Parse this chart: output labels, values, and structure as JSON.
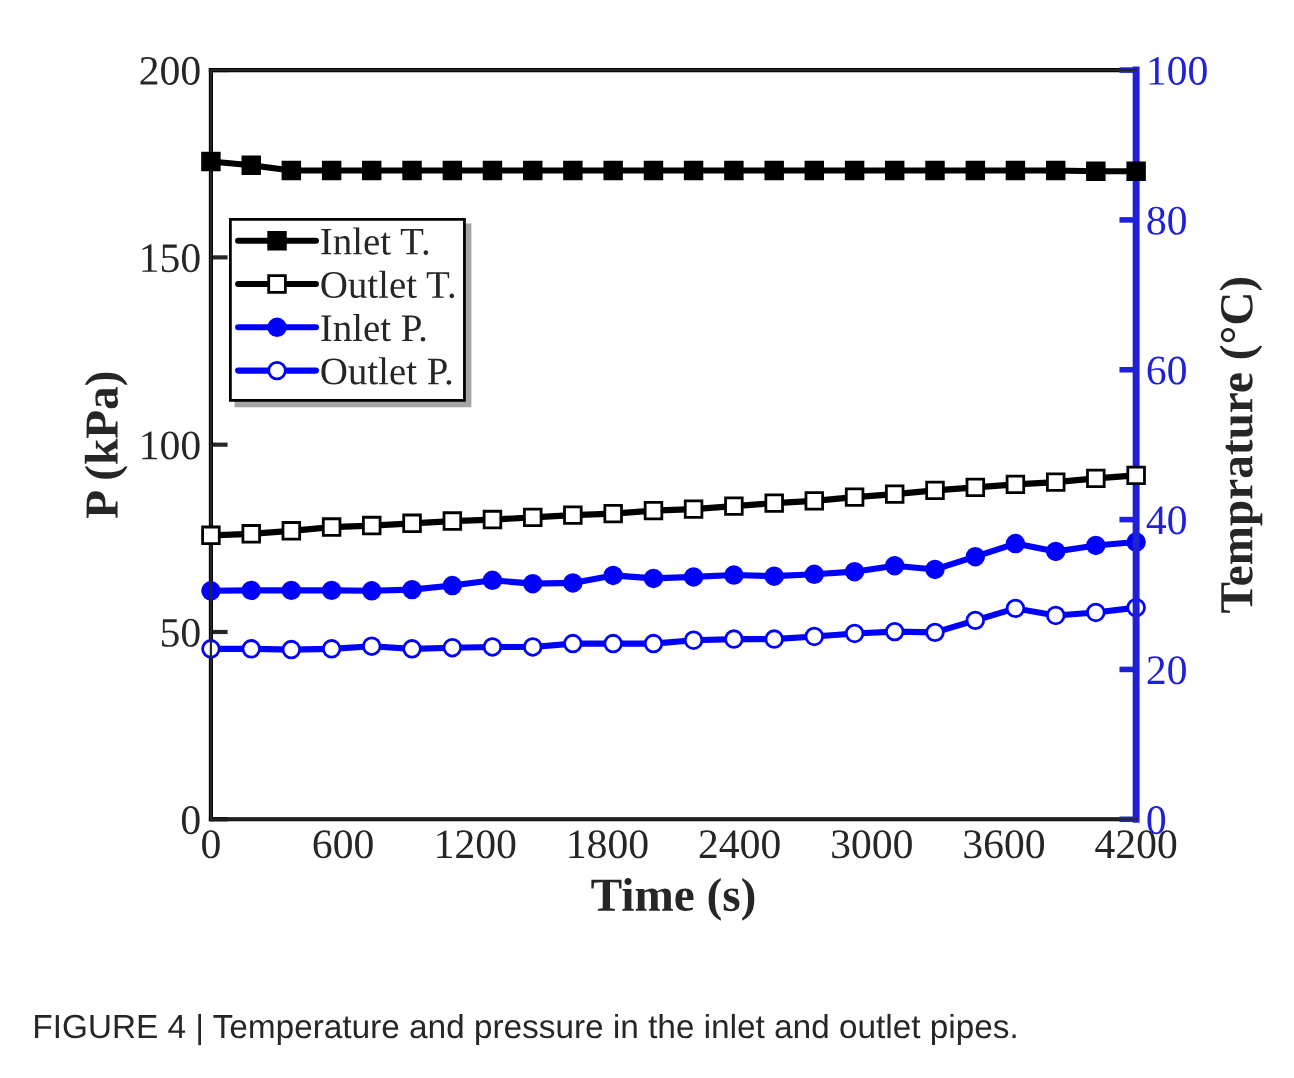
{
  "chart_data": {
    "type": "line",
    "xlabel": "Time (s)",
    "ylabel": "P (kPa)",
    "y2label": "Temprature (°C)",
    "x": [
      0,
      183,
      365,
      548,
      730,
      913,
      1096,
      1278,
      1461,
      1643,
      1826,
      2009,
      2191,
      2374,
      2557,
      2739,
      2922,
      3104,
      3287,
      3470,
      3652,
      3835,
      4017,
      4200
    ],
    "series": [
      {
        "name": "Inlet T.",
        "color": "#000000",
        "axis": "y2",
        "marker": "square",
        "values": [
          87.8,
          87.3,
          86.6,
          86.6,
          86.6,
          86.6,
          86.6,
          86.6,
          86.6,
          86.6,
          86.6,
          86.6,
          86.6,
          86.6,
          86.6,
          86.6,
          86.6,
          86.6,
          86.6,
          86.6,
          86.6,
          86.6,
          86.5,
          86.5
        ]
      },
      {
        "name": "Outlet T.",
        "color": "#000000",
        "axis": "y2",
        "marker": "square",
        "values": [
          37.9,
          38.1,
          38.5,
          39.0,
          39.2,
          39.5,
          39.8,
          40.0,
          40.3,
          40.6,
          40.8,
          41.2,
          41.4,
          41.8,
          42.2,
          42.5,
          43.0,
          43.4,
          43.9,
          44.3,
          44.7,
          45.0,
          45.5,
          45.9
        ]
      },
      {
        "name": "Inlet P.",
        "color": "#0000ff",
        "axis": "y",
        "marker": "circle",
        "values": [
          61.0,
          61.1,
          61.1,
          61.1,
          61.0,
          61.3,
          62.4,
          63.8,
          62.9,
          63.1,
          65.1,
          64.3,
          64.7,
          65.2,
          64.9,
          65.4,
          66.1,
          67.7,
          66.7,
          70.1,
          73.6,
          71.5,
          73.1,
          74.0
        ]
      },
      {
        "name": "Outlet P.",
        "color": "#0000ff",
        "axis": "y",
        "marker": "circle",
        "values": [
          45.5,
          45.5,
          45.3,
          45.5,
          46.2,
          45.5,
          45.8,
          46.0,
          46.0,
          46.9,
          46.9,
          46.9,
          47.8,
          48.1,
          48.1,
          48.8,
          49.6,
          50.1,
          49.9,
          53.1,
          56.3,
          54.4,
          55.2,
          56.5
        ]
      }
    ],
    "xlim": [
      0,
      4200
    ],
    "xticks": [
      0,
      600,
      1200,
      1800,
      2400,
      3000,
      3600,
      4200
    ],
    "ylim": [
      0,
      200
    ],
    "yticks": [
      0,
      50,
      100,
      150,
      200
    ],
    "y2lim": [
      0,
      100
    ],
    "y2ticks": [
      0,
      20,
      40,
      60,
      80,
      100
    ],
    "legend": "left",
    "grid": false,
    "line_style": "solid",
    "annotations": [
      "FIGURE 4 | Temperature and pressure in the inlet and outlet pipes."
    ]
  }
}
